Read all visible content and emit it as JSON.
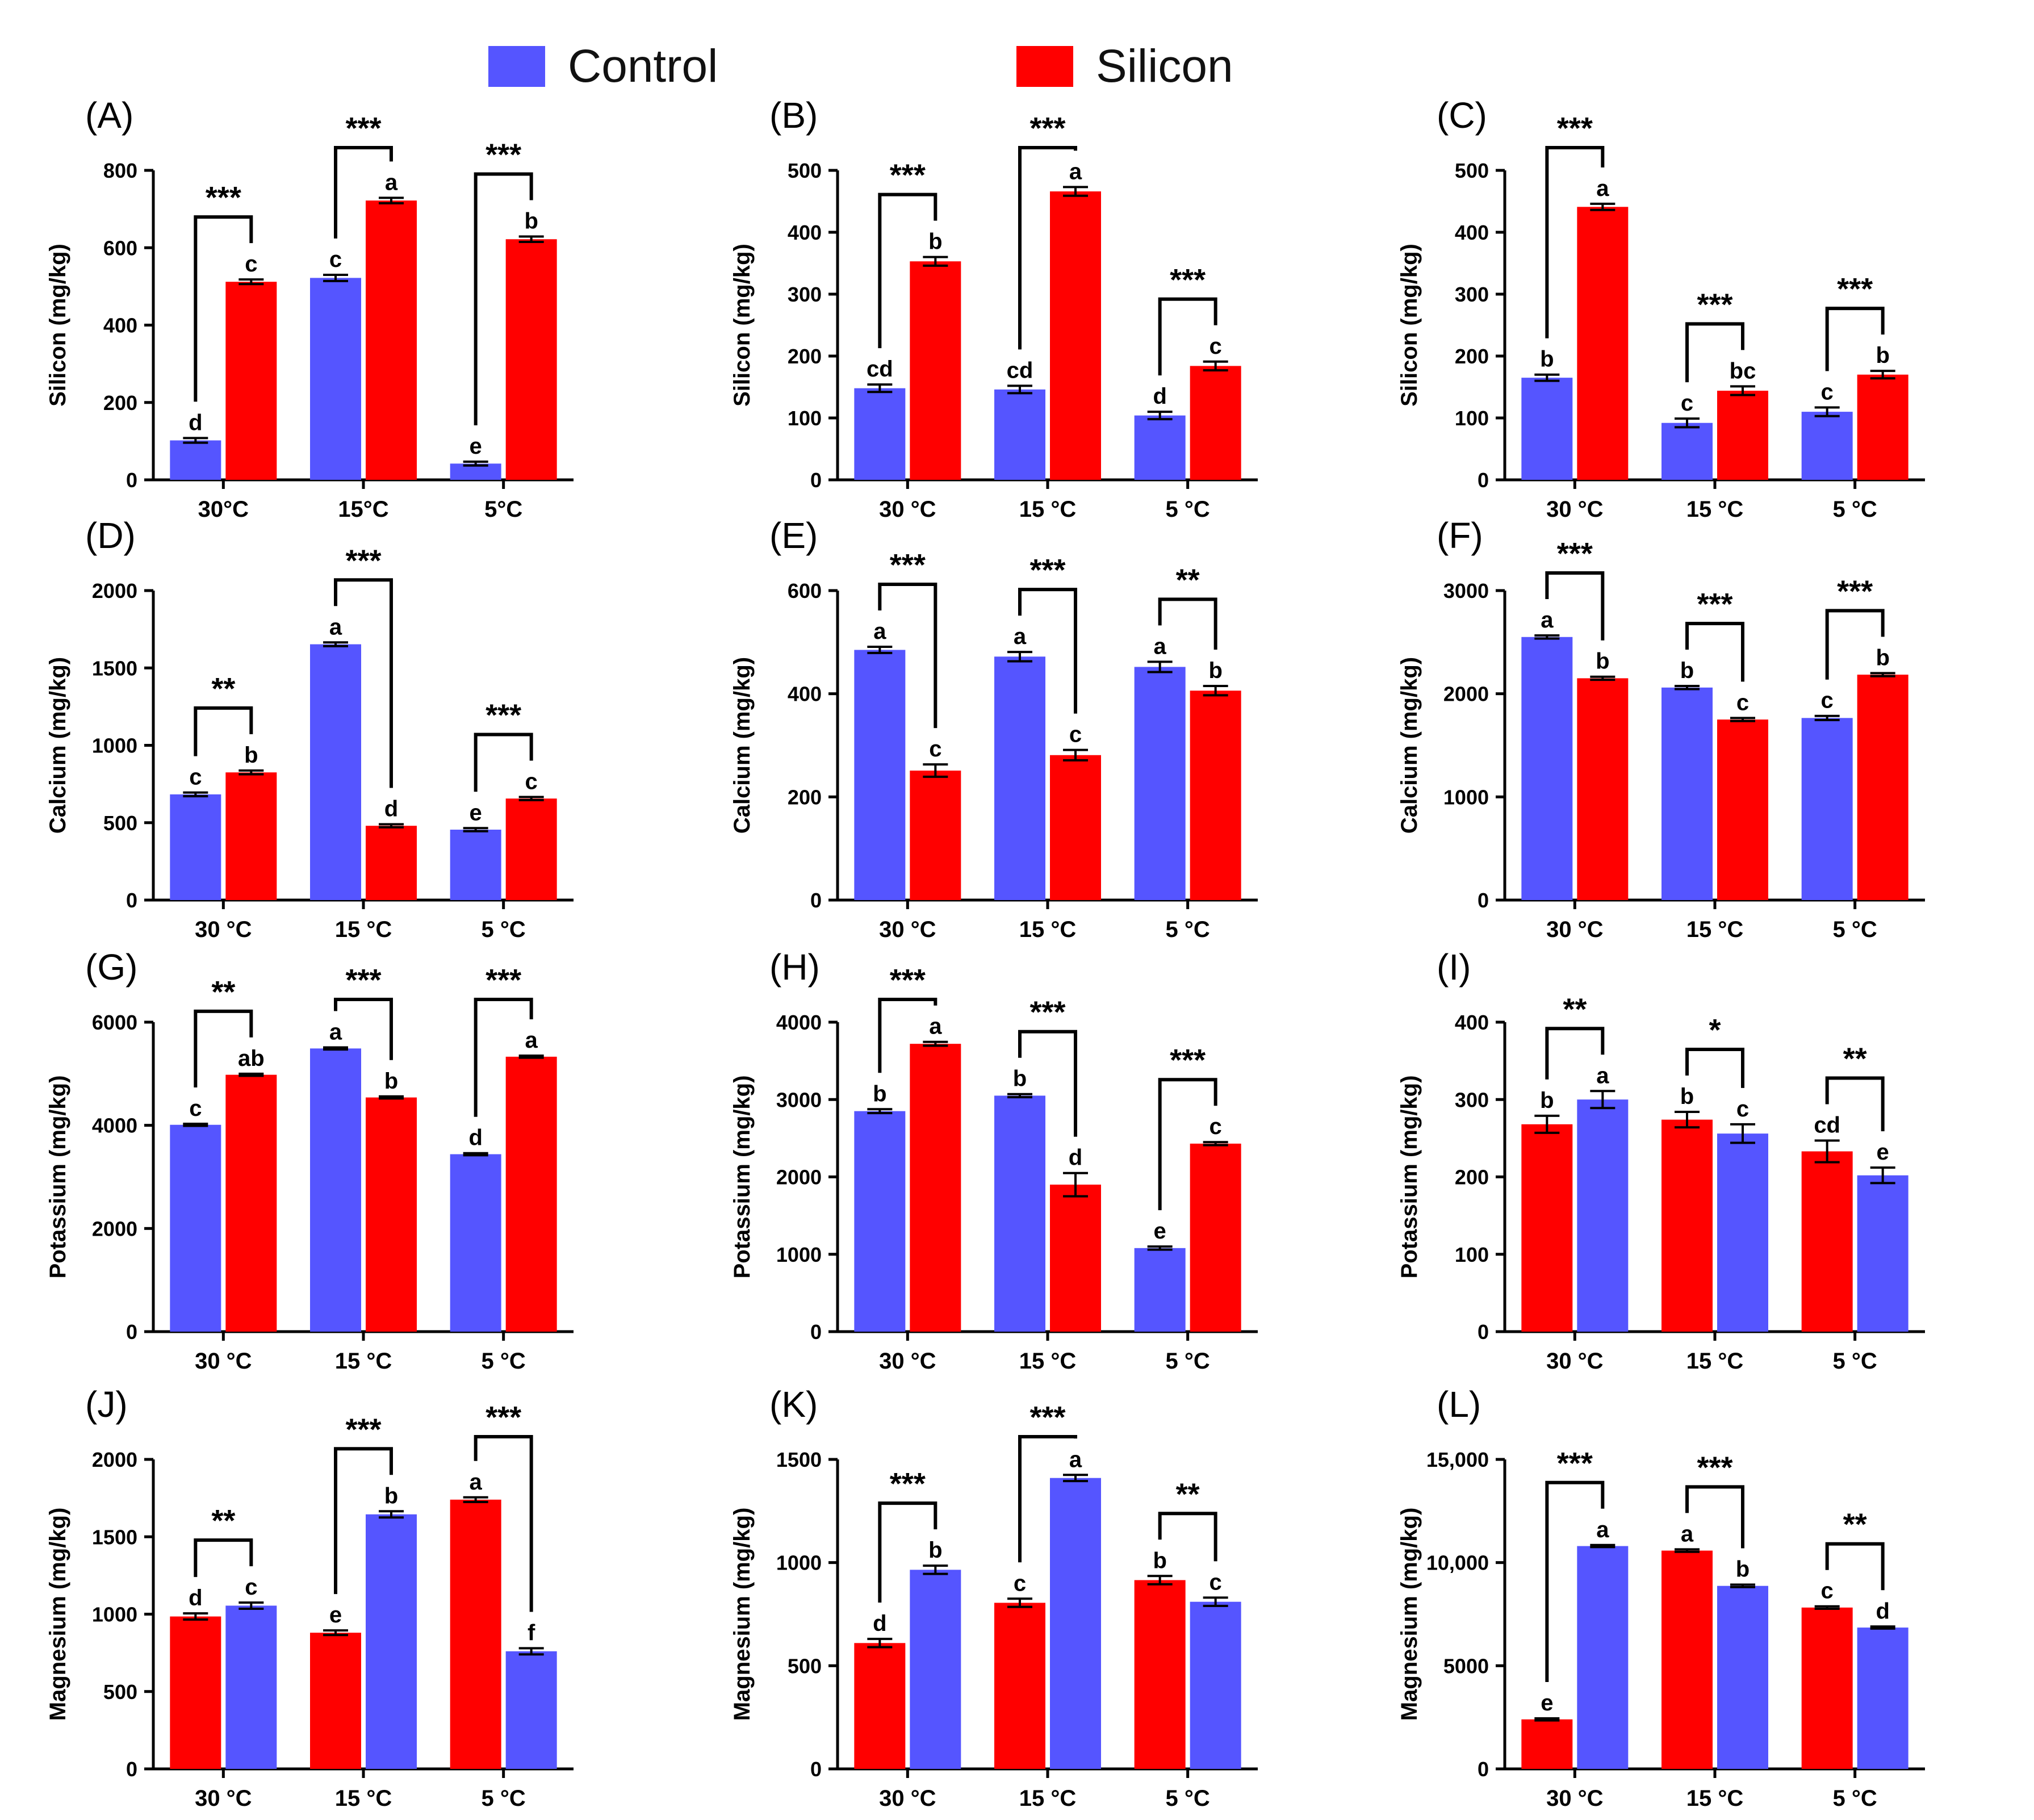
{
  "legend": {
    "items": [
      {
        "label": "Control",
        "color": "#5555FF"
      },
      {
        "label": "Silicon",
        "color": "#FF0000"
      }
    ]
  },
  "colors": {
    "control": "#5555FF",
    "silicon": "#FF0000",
    "axis": "#000000"
  },
  "chart_data": [
    {
      "type": "bar",
      "panel": "(A)",
      "ylabel": "Silicon (mg/kg)",
      "categories": [
        "30°C",
        "15°C",
        "5°C"
      ],
      "yticks": [
        "0",
        "200",
        "400",
        "600",
        "800"
      ],
      "ylim": [
        0,
        800
      ],
      "series": [
        {
          "name": "Control",
          "color": "#5555FF",
          "values": [
            102,
            522,
            42
          ],
          "errors": [
            6,
            8,
            5
          ],
          "letters": [
            "d",
            "c",
            "e"
          ]
        },
        {
          "name": "Silicon",
          "color": "#FF0000",
          "values": [
            512,
            722,
            622
          ],
          "errors": [
            6,
            7,
            7
          ],
          "letters": [
            "c",
            "a",
            "b"
          ]
        }
      ],
      "sig": [
        "***",
        "***",
        "***"
      ]
    },
    {
      "type": "bar",
      "panel": "(B)",
      "ylabel": "Silicon (mg/kg)",
      "categories": [
        "30 °C",
        "15 °C",
        "5 °C"
      ],
      "yticks": [
        "0",
        "100",
        "200",
        "300",
        "400",
        "500"
      ],
      "ylim": [
        0,
        500
      ],
      "series": [
        {
          "name": "Control",
          "color": "#5555FF",
          "values": [
            148,
            146,
            104
          ],
          "errors": [
            6,
            6,
            6
          ],
          "letters": [
            "cd",
            "cd",
            "d"
          ]
        },
        {
          "name": "Silicon",
          "color": "#FF0000",
          "values": [
            353,
            466,
            184
          ],
          "errors": [
            7,
            7,
            7
          ],
          "letters": [
            "b",
            "a",
            "c"
          ]
        }
      ],
      "sig": [
        "***",
        "***",
        "***"
      ]
    },
    {
      "type": "bar",
      "panel": "(C)",
      "ylabel": "Silicon (mg/kg)",
      "categories": [
        "30 °C",
        "15 °C",
        "5 °C"
      ],
      "yticks": [
        "0",
        "100",
        "200",
        "300",
        "400",
        "500"
      ],
      "ylim": [
        0,
        500
      ],
      "series": [
        {
          "name": "Control",
          "color": "#5555FF",
          "values": [
            165,
            92,
            110
          ],
          "errors": [
            5,
            7,
            7
          ],
          "letters": [
            "b",
            "c",
            "c"
          ]
        },
        {
          "name": "Silicon",
          "color": "#FF0000",
          "values": [
            441,
            144,
            170
          ],
          "errors": [
            5,
            7,
            6
          ],
          "letters": [
            "a",
            "bc",
            "b"
          ]
        }
      ],
      "sig": [
        "***",
        "***",
        "***"
      ]
    },
    {
      "type": "bar",
      "panel": "(D)",
      "ylabel": "Calcium (mg/kg)",
      "categories": [
        "30 °C",
        "15 °C",
        "5 °C"
      ],
      "yticks": [
        "0",
        "500",
        "1000",
        "1500",
        "2000"
      ],
      "ylim": [
        0,
        2000
      ],
      "series": [
        {
          "name": "Control",
          "color": "#5555FF",
          "values": [
            683,
            1653,
            455
          ],
          "errors": [
            12,
            12,
            10
          ],
          "letters": [
            "c",
            "a",
            "e"
          ]
        },
        {
          "name": "Silicon",
          "color": "#FF0000",
          "values": [
            825,
            480,
            656
          ],
          "errors": [
            12,
            10,
            10
          ],
          "letters": [
            "b",
            "d",
            "c"
          ]
        }
      ],
      "sig": [
        "**",
        "***",
        "***"
      ]
    },
    {
      "type": "bar",
      "panel": "(E)",
      "ylabel": "Calcium (mg/kg)",
      "categories": [
        "30 °C",
        "15 °C",
        "5 °C"
      ],
      "yticks": [
        "0",
        "200",
        "400",
        "600"
      ],
      "ylim": [
        0,
        600
      ],
      "series": [
        {
          "name": "Control",
          "color": "#5555FF",
          "values": [
            485,
            472,
            452
          ],
          "errors": [
            6,
            9,
            10
          ],
          "letters": [
            "a",
            "a",
            "a"
          ]
        },
        {
          "name": "Silicon",
          "color": "#FF0000",
          "values": [
            251,
            281,
            406
          ],
          "errors": [
            12,
            10,
            9
          ],
          "letters": [
            "c",
            "c",
            "b"
          ]
        }
      ],
      "sig": [
        "***",
        "***",
        "**"
      ]
    },
    {
      "type": "bar",
      "panel": "(F)",
      "ylabel": "Calcium (mg/kg)",
      "categories": [
        "30 °C",
        "15 °C",
        "5 °C"
      ],
      "yticks": [
        "0",
        "1000",
        "2000",
        "3000"
      ],
      "ylim": [
        0,
        3000
      ],
      "series": [
        {
          "name": "Control",
          "color": "#5555FF",
          "values": [
            2550,
            2060,
            1765
          ],
          "errors": [
            15,
            15,
            20
          ],
          "letters": [
            "a",
            "b",
            "c"
          ]
        },
        {
          "name": "Silicon",
          "color": "#FF0000",
          "values": [
            2150,
            1750,
            2185
          ],
          "errors": [
            15,
            15,
            15
          ],
          "letters": [
            "b",
            "c",
            "b"
          ]
        }
      ],
      "sig": [
        "***",
        "***",
        "***"
      ]
    },
    {
      "type": "bar",
      "panel": "(G)",
      "ylabel": "Potassium (mg/kg)",
      "categories": [
        "30 °C",
        "15 °C",
        "5 °C"
      ],
      "yticks": [
        "0",
        "2000",
        "4000",
        "6000"
      ],
      "ylim": [
        0,
        6000
      ],
      "series": [
        {
          "name": "Control",
          "color": "#5555FF",
          "values": [
            4010,
            5490,
            3440
          ],
          "errors": [
            20,
            20,
            20
          ],
          "letters": [
            "c",
            "a",
            "d"
          ]
        },
        {
          "name": "Silicon",
          "color": "#FF0000",
          "values": [
            4980,
            4540,
            5330
          ],
          "errors": [
            20,
            20,
            20
          ],
          "letters": [
            "ab",
            "b",
            "a"
          ]
        }
      ],
      "sig": [
        "**",
        "***",
        "***"
      ]
    },
    {
      "type": "bar",
      "panel": "(H)",
      "ylabel": "Potassium (mg/kg)",
      "categories": [
        "30 °C",
        "15 °C",
        "5 °C"
      ],
      "yticks": [
        "0",
        "1000",
        "2000",
        "3000",
        "4000"
      ],
      "ylim": [
        0,
        4000
      ],
      "series": [
        {
          "name": "Control",
          "color": "#5555FF",
          "values": [
            2850,
            3050,
            1080
          ],
          "errors": [
            25,
            20,
            20
          ],
          "letters": [
            "b",
            "b",
            "e"
          ]
        },
        {
          "name": "Silicon",
          "color": "#FF0000",
          "values": [
            3720,
            1900,
            2430
          ],
          "errors": [
            25,
            150,
            20
          ],
          "letters": [
            "a",
            "d",
            "c"
          ]
        }
      ],
      "sig": [
        "***",
        "***",
        "***"
      ]
    },
    {
      "type": "bar",
      "panel": "(I)",
      "ylabel": "Potassium (mg/kg)",
      "categories": [
        "30 °C",
        "15 °C",
        "5 °C"
      ],
      "yticks": [
        "0",
        "100",
        "200",
        "300",
        "400"
      ],
      "ylim": [
        0,
        400
      ],
      "series": [
        {
          "name": "Silicon",
          "color": "#FF0000",
          "values": [
            268,
            274,
            233
          ],
          "errors": [
            11,
            10,
            14
          ],
          "letters": [
            "b",
            "b",
            "cd"
          ]
        },
        {
          "name": "Control",
          "color": "#5555FF",
          "values": [
            300,
            256,
            202
          ],
          "errors": [
            11,
            12,
            10
          ],
          "letters": [
            "a",
            "c",
            "e"
          ]
        }
      ],
      "sig": [
        "**",
        "*",
        "**"
      ]
    },
    {
      "type": "bar",
      "panel": "(J)",
      "ylabel": "Magnesium (mg/kg)",
      "categories": [
        "30 °C",
        "15 °C",
        "5 °C"
      ],
      "yticks": [
        "0",
        "500",
        "1000",
        "1500",
        "2000"
      ],
      "ylim": [
        0,
        2000
      ],
      "series": [
        {
          "name": "Silicon",
          "color": "#FF0000",
          "values": [
            985,
            880,
            1740
          ],
          "errors": [
            20,
            15,
            15
          ],
          "letters": [
            "d",
            "e",
            "a"
          ]
        },
        {
          "name": "Control",
          "color": "#5555FF",
          "values": [
            1055,
            1645,
            760
          ],
          "errors": [
            20,
            20,
            20
          ],
          "letters": [
            "c",
            "b",
            "f"
          ]
        }
      ],
      "sig": [
        "**",
        "***",
        "***"
      ]
    },
    {
      "type": "bar",
      "panel": "(K)",
      "ylabel": "Magnesium  (mg/kg)",
      "categories": [
        "30 °C",
        "15 °C",
        "5 °C"
      ],
      "yticks": [
        "0",
        "500",
        "1000",
        "1500"
      ],
      "ylim": [
        0,
        1500
      ],
      "series": [
        {
          "name": "Silicon",
          "color": "#FF0000",
          "values": [
            610,
            805,
            915
          ],
          "errors": [
            20,
            20,
            20
          ],
          "letters": [
            "d",
            "c",
            "b"
          ]
        },
        {
          "name": "Control",
          "color": "#5555FF",
          "values": [
            965,
            1410,
            810
          ],
          "errors": [
            20,
            15,
            20
          ],
          "letters": [
            "b",
            "a",
            "c"
          ]
        }
      ],
      "sig": [
        "***",
        "***",
        "**"
      ]
    },
    {
      "type": "bar",
      "panel": "(L)",
      "ylabel": "Magnesium (mg/kg)",
      "categories": [
        "30 °C",
        "15 °C",
        "5 °C"
      ],
      "yticks": [
        "0",
        "5000",
        "10,000",
        "15,000"
      ],
      "ylim": [
        0,
        15000
      ],
      "series": [
        {
          "name": "Silicon",
          "color": "#FF0000",
          "values": [
            2400,
            10580,
            7820
          ],
          "errors": [
            50,
            60,
            60
          ],
          "letters": [
            "e",
            "a",
            "c"
          ]
        },
        {
          "name": "Control",
          "color": "#5555FF",
          "values": [
            10800,
            8870,
            6850
          ],
          "errors": [
            50,
            60,
            50
          ],
          "letters": [
            "a",
            "b",
            "d"
          ]
        }
      ],
      "sig": [
        "***",
        "***",
        "**"
      ]
    }
  ]
}
